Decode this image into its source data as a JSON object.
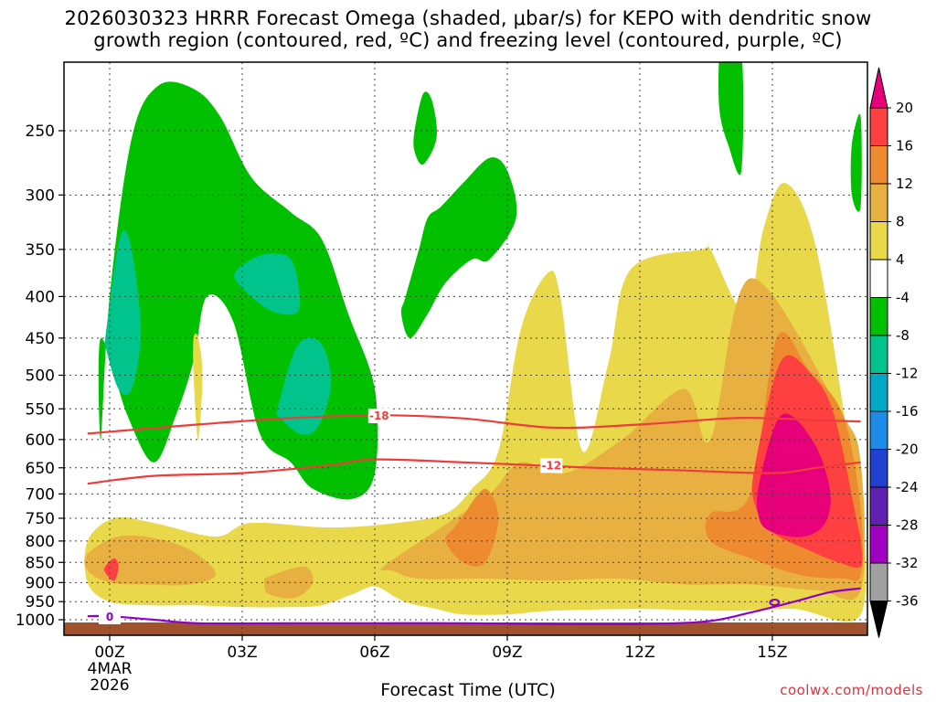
{
  "title_line1": "2026030323 HRRR Forecast Omega (shaded, μbar/s) for KEPO with dendritic snow",
  "title_line2": "growth region (contoured, red, ºC) and freezing level (contoured, purple, ºC)",
  "xlabel": "Forecast Time (UTC)",
  "credit": "coolwx.com/models",
  "chart_data": {
    "type": "heatmap",
    "x_ticks": [
      "00Z",
      "03Z",
      "06Z",
      "09Z",
      "12Z",
      "15Z"
    ],
    "x_tick_hours": [
      0,
      3,
      6,
      9,
      12,
      15
    ],
    "x_range": [
      -0.5,
      17
    ],
    "date_label": [
      "4MAR",
      "2026"
    ],
    "y_ticks": [
      250,
      300,
      350,
      400,
      450,
      500,
      550,
      600,
      650,
      700,
      750,
      800,
      850,
      900,
      950,
      1000
    ],
    "y_range": [
      200,
      1030
    ],
    "y_scale": "log",
    "colorbar": {
      "levels": [
        20,
        16,
        12,
        8,
        4,
        -4,
        -8,
        -12,
        -16,
        -20,
        -24,
        -28,
        -32,
        -36
      ],
      "colors": [
        "#e8007a",
        "#ff4040",
        "#ee8a30",
        "#e8b040",
        "#e9d84a",
        "#ffffff",
        "#00c000",
        "#00c48c",
        "#00a8c8",
        "#1c8ce8",
        "#2040d0",
        "#6020b0",
        "#a000c0",
        "#a0a0a0",
        "#000000"
      ]
    },
    "isotherms": [
      {
        "label": "-18",
        "color": "#ee3c3c",
        "x": [
          -0.5,
          2,
          4,
          6,
          8,
          10,
          12,
          14,
          15,
          16,
          17
        ],
        "p": [
          590,
          575,
          565,
          560,
          565,
          580,
          575,
          565,
          565,
          568,
          570
        ]
      },
      {
        "label": "-12",
        "color": "#ee3c3c",
        "x": [
          -0.5,
          1,
          3,
          5,
          6,
          8,
          9.5,
          11,
          13,
          15,
          16,
          17
        ],
        "p": [
          680,
          665,
          660,
          645,
          635,
          640,
          645,
          650,
          655,
          660,
          650,
          640
        ]
      },
      {
        "label": "0",
        "color": "#9000c8",
        "x": [
          -0.5,
          0,
          1,
          2,
          4,
          6,
          8,
          10,
          12,
          13.5,
          14.5,
          15.5,
          16.3,
          17
        ],
        "p": [
          990,
          990,
          1000,
          1010,
          1010,
          1010,
          1010,
          1012,
          1012,
          1005,
          980,
          950,
          925,
          915
        ]
      }
    ],
    "omega_regions": [
      {
        "value": -6,
        "x": [
          -0.2,
          0.0,
          0.5,
          1.1,
          1.9,
          2.5,
          3.2,
          4.1,
          4.8,
          5.4,
          6.0,
          6.0,
          5.5,
          4.6,
          4.1,
          3.4,
          2.8,
          2.2,
          1.9,
          1.5,
          1.0,
          0.4,
          -0.2
        ],
        "p": [
          600,
          400,
          255,
          220,
          222,
          240,
          285,
          315,
          340,
          420,
          520,
          660,
          710,
          690,
          640,
          590,
          430,
          400,
          480,
          560,
          640,
          560,
          450
        ]
      },
      {
        "value": -6,
        "x": [
          6.7,
          7.0,
          7.2,
          7.5,
          8.0,
          8.6,
          9.0,
          9.2,
          8.6,
          8.2,
          7.6,
          7.2,
          6.8,
          6.6
        ],
        "p": [
          400,
          350,
          320,
          310,
          290,
          270,
          280,
          320,
          360,
          360,
          385,
          420,
          450,
          420
        ]
      },
      {
        "value": -6,
        "x": [
          6.9,
          7.1,
          7.3,
          7.4,
          7.1,
          6.9
        ],
        "p": [
          250,
          225,
          230,
          255,
          275,
          265
        ]
      },
      {
        "value": -6,
        "x": [
          13.8,
          13.9,
          14.3,
          14.3,
          14.0,
          13.8
        ],
        "p": [
          200,
          200,
          200,
          280,
          260,
          235
        ]
      },
      {
        "value": -6,
        "x": [
          16.8,
          17.0,
          17.0,
          16.8
        ],
        "p": [
          260,
          240,
          310,
          300
        ]
      },
      {
        "value": -10,
        "x": [
          -0.1,
          0.2,
          0.4,
          0.6,
          0.7,
          0.5,
          0.2,
          -0.1
        ],
        "p": [
          450,
          345,
          335,
          380,
          450,
          520,
          520,
          460
        ]
      },
      {
        "value": -10,
        "x": [
          2.9,
          3.5,
          4.1,
          4.3,
          4.2,
          3.6,
          2.9
        ],
        "p": [
          370,
          355,
          360,
          400,
          420,
          415,
          385
        ]
      },
      {
        "value": -10,
        "x": [
          3.8,
          4.2,
          4.6,
          4.9,
          5.0,
          4.7,
          4.3,
          3.8
        ],
        "p": [
          550,
          465,
          450,
          470,
          520,
          580,
          590,
          560
        ]
      },
      {
        "value": 6,
        "x": [
          -0.5,
          0.1,
          1.0,
          2.4,
          3.2,
          5.0,
          6.5,
          7.6,
          8.2,
          8.8,
          9.3,
          9.9,
          10.2,
          10.7,
          11.3,
          11.8,
          13.4,
          13.6,
          14.4,
          14.8,
          15.3,
          16.0,
          16.8,
          17.0,
          17.0,
          15.5,
          14.0,
          12.0,
          10.0,
          9.0,
          8.0,
          7.4,
          6.8,
          6.5,
          6.0,
          5.5,
          4.8,
          4.0,
          3.0,
          2.0,
          1.0,
          0.0,
          -0.5
        ],
        "p": [
          800,
          750,
          760,
          790,
          760,
          770,
          760,
          740,
          690,
          620,
          440,
          375,
          400,
          620,
          480,
          370,
          350,
          350,
          420,
          330,
          290,
          350,
          640,
          700,
          985,
          970,
          975,
          970,
          975,
          985,
          985,
          970,
          955,
          940,
          910,
          930,
          960,
          965,
          965,
          960,
          960,
          950,
          900
        ]
      },
      {
        "value": 6,
        "x": [
          1.9,
          2.0,
          2.1,
          2.0,
          1.9
        ],
        "p": [
          450,
          450,
          500,
          600,
          500
        ]
      },
      {
        "value": 10,
        "x": [
          -0.5,
          0.2,
          1.1,
          1.9,
          2.4,
          1.8,
          0.8,
          0.0,
          -0.5
        ],
        "p": [
          830,
          790,
          795,
          825,
          880,
          905,
          905,
          900,
          870
        ]
      },
      {
        "value": 10,
        "x": [
          3.6,
          4.4,
          4.6,
          4.2,
          3.6,
          3.5
        ],
        "p": [
          885,
          860,
          900,
          940,
          930,
          900
        ]
      },
      {
        "value": 10,
        "x": [
          6.2,
          7.5,
          8.6,
          9.3,
          10.3,
          11.6,
          13.0,
          13.6,
          14.5,
          16.5,
          17.0,
          17.0,
          16.0,
          14.5,
          13.0,
          11.5,
          10.0,
          8.5,
          7.0,
          6.4
        ],
        "p": [
          860,
          770,
          700,
          640,
          660,
          600,
          520,
          600,
          380,
          550,
          640,
          920,
          920,
          905,
          905,
          890,
          895,
          890,
          890,
          870
        ]
      },
      {
        "value": 14,
        "x": [
          8.0,
          8.5,
          8.8,
          8.5,
          8.0,
          7.6,
          7.8
        ],
        "p": [
          745,
          690,
          750,
          850,
          850,
          800,
          770
        ]
      },
      {
        "value": 14,
        "x": [
          13.6,
          14.5,
          15.1,
          15.8,
          16.6,
          17.0,
          17.0,
          16.6,
          15.6,
          14.5,
          13.6
        ],
        "p": [
          740,
          700,
          450,
          490,
          560,
          730,
          880,
          890,
          880,
          840,
          800
        ]
      },
      {
        "value": 18,
        "x": [
          14.6,
          15.2,
          15.9,
          16.4,
          16.9,
          17.0,
          17.0,
          16.5,
          15.8,
          15.0,
          14.6
        ],
        "p": [
          650,
          480,
          500,
          560,
          750,
          800,
          860,
          850,
          820,
          780,
          720
        ]
      },
      {
        "value": 22,
        "x": [
          14.7,
          15.2,
          15.9,
          16.3,
          16.2,
          15.7,
          15.0,
          14.7
        ],
        "p": [
          680,
          560,
          600,
          690,
          760,
          790,
          780,
          750
        ]
      },
      {
        "value": 18,
        "x": [
          -0.1,
          0.1,
          0.2,
          0.1,
          -0.1
        ],
        "p": [
          860,
          840,
          860,
          895,
          875
        ]
      }
    ]
  }
}
